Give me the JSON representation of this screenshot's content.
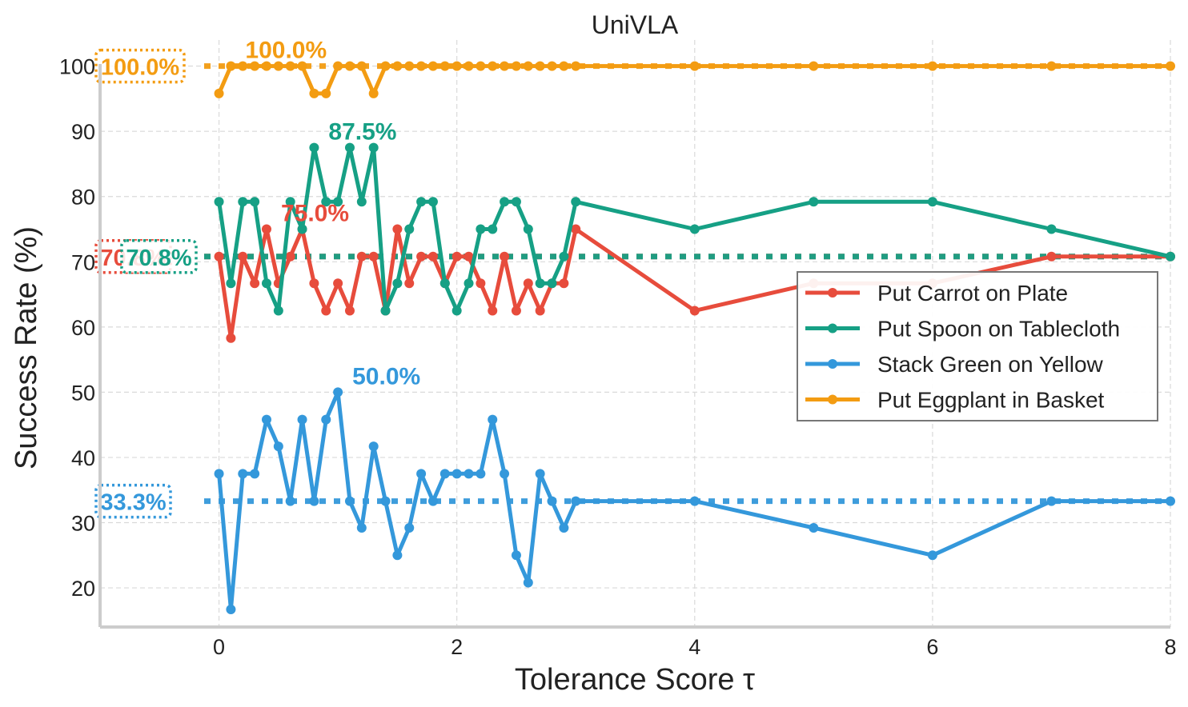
{
  "chart_data": {
    "type": "line",
    "title": "UniVLA",
    "xlabel": "Tolerance Score τ",
    "ylabel": "Success Rate (%)",
    "xlim": [
      -1.0,
      8.0
    ],
    "ylim": [
      14,
      104
    ],
    "xticks": [
      0,
      2,
      4,
      6,
      8
    ],
    "yticks": [
      20,
      30,
      40,
      50,
      60,
      70,
      80,
      90,
      100
    ],
    "grid": true,
    "legend_position": "center-right",
    "x": [
      0,
      0.1,
      0.2,
      0.3,
      0.4,
      0.5,
      0.6,
      0.7,
      0.8,
      0.9,
      1.0,
      1.1,
      1.2,
      1.3,
      1.4,
      1.5,
      1.6,
      1.7,
      1.8,
      1.9,
      2.0,
      2.1,
      2.2,
      2.3,
      2.4,
      2.5,
      2.6,
      2.7,
      2.8,
      2.9,
      3,
      4,
      5,
      6,
      7,
      8
    ],
    "series": [
      {
        "name": "Put Carrot on Plate",
        "color": "#e74c3c",
        "values": [
          70.8,
          58.3,
          70.8,
          66.7,
          75.0,
          66.7,
          70.8,
          75.0,
          66.7,
          62.5,
          66.7,
          62.5,
          70.8,
          70.8,
          62.5,
          75.0,
          66.7,
          70.8,
          70.8,
          66.7,
          70.8,
          70.8,
          66.7,
          62.5,
          70.8,
          62.5,
          66.7,
          62.5,
          66.7,
          66.7,
          75.0,
          62.5,
          66.7,
          66.7,
          70.8,
          70.8
        ],
        "reference": 70.8,
        "reference_label": "70.8%",
        "max_label": "75.0%",
        "max_x": 0.4,
        "max_y": 75.0
      },
      {
        "name": "Put Spoon on Tablecloth",
        "color": "#16a085",
        "values": [
          79.2,
          66.7,
          79.2,
          79.2,
          66.7,
          62.5,
          79.2,
          75.0,
          87.5,
          79.2,
          79.2,
          87.5,
          79.2,
          87.5,
          62.5,
          66.7,
          75.0,
          79.2,
          79.2,
          66.7,
          62.5,
          66.7,
          75.0,
          75.0,
          79.2,
          79.2,
          75.0,
          66.7,
          66.7,
          70.8,
          79.2,
          75.0,
          79.2,
          79.2,
          75.0,
          70.8
        ],
        "reference": 70.8,
        "reference_label": "70.8%",
        "max_label": "87.5%",
        "max_x": 0.8,
        "max_y": 87.5
      },
      {
        "name": "Stack Green on Yellow",
        "color": "#3498db",
        "values": [
          37.5,
          16.7,
          37.5,
          37.5,
          45.8,
          41.7,
          33.3,
          45.8,
          33.3,
          45.8,
          50.0,
          33.3,
          29.2,
          41.7,
          33.3,
          25.0,
          29.2,
          37.5,
          33.3,
          37.5,
          37.5,
          37.5,
          37.5,
          45.8,
          37.5,
          25.0,
          20.8,
          37.5,
          33.3,
          29.2,
          33.3,
          33.3,
          29.2,
          25.0,
          33.3,
          33.3
        ],
        "reference": 33.3,
        "reference_label": "33.3%",
        "max_label": "50.0%",
        "max_x": 1.0,
        "max_y": 50.0
      },
      {
        "name": "Put Eggplant in Basket",
        "color": "#f39c12",
        "values": [
          95.8,
          100,
          100,
          100,
          100,
          100,
          100,
          100,
          95.8,
          95.8,
          100,
          100,
          100,
          95.8,
          100,
          100,
          100,
          100,
          100,
          100,
          100,
          100,
          100,
          100,
          100,
          100,
          100,
          100,
          100,
          100,
          100,
          100,
          100,
          100,
          100,
          100
        ],
        "reference": 100.0,
        "reference_label": "100.0%",
        "max_label": "100.0%",
        "max_x": 0.1,
        "max_y": 100.0
      }
    ]
  }
}
